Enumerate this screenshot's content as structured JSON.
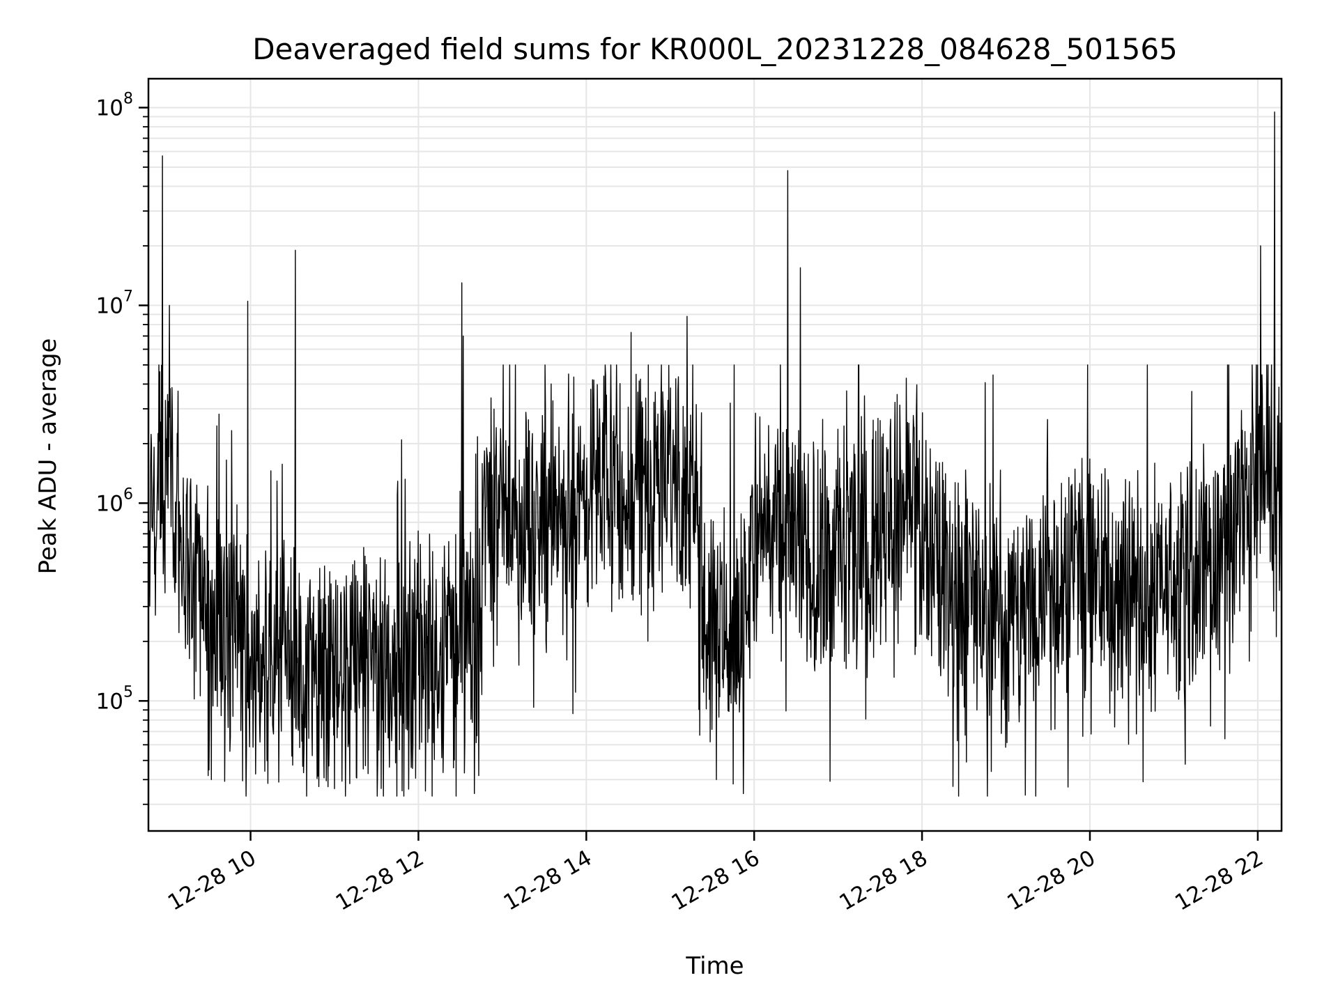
{
  "chart_data": {
    "type": "line",
    "title": "Deaveraged field sums for KR000L_20231228_084628_501565",
    "xlabel": "Time",
    "ylabel": "Peak ADU - average",
    "yscale": "log",
    "ylim": [
      22000,
      140000000
    ],
    "xlim": [
      "12-28 08:47",
      "12-28 22:17"
    ],
    "grid": true,
    "line_color": "#000000",
    "grid_color": "#e6e6e6",
    "x_ticks": [
      {
        "label": "12-28 10",
        "x": "12-28 10:00"
      },
      {
        "label": "12-28 12",
        "x": "12-28 12:00"
      },
      {
        "label": "12-28 14",
        "x": "12-28 14:00"
      },
      {
        "label": "12-28 16",
        "x": "12-28 16:00"
      },
      {
        "label": "12-28 18",
        "x": "12-28 18:00"
      },
      {
        "label": "12-28 20",
        "x": "12-28 20:00"
      },
      {
        "label": "12-28 22",
        "x": "12-28 22:00"
      }
    ],
    "y_ticks": [
      {
        "base": "10",
        "exp": "5",
        "value": 100000
      },
      {
        "base": "10",
        "exp": "6",
        "value": 1000000
      },
      {
        "base": "10",
        "exp": "7",
        "value": 10000000
      },
      {
        "base": "10",
        "exp": "8",
        "value": 100000000
      }
    ],
    "series_envelope": [
      {
        "x": "12-28 08:47",
        "y": 400000
      },
      {
        "x": "12-28 08:55",
        "y": 1500000
      },
      {
        "x": "12-28 09:02",
        "y": 1700000
      },
      {
        "x": "12-28 09:15",
        "y": 450000
      },
      {
        "x": "12-28 10:00",
        "y": 180000
      },
      {
        "x": "12-28 11:00",
        "y": 140000
      },
      {
        "x": "12-28 12:00",
        "y": 160000
      },
      {
        "x": "12-28 12:44",
        "y": 200000
      },
      {
        "x": "12-28 12:47",
        "y": 900000
      },
      {
        "x": "12-28 13:30",
        "y": 800000
      },
      {
        "x": "12-28 14:30",
        "y": 1300000
      },
      {
        "x": "12-28 15:10",
        "y": 1500000
      },
      {
        "x": "12-28 15:22",
        "y": 600000
      },
      {
        "x": "12-28 15:26",
        "y": 250000
      },
      {
        "x": "12-28 15:50",
        "y": 250000
      },
      {
        "x": "12-28 16:05",
        "y": 900000
      },
      {
        "x": "12-28 16:40",
        "y": 500000
      },
      {
        "x": "12-28 17:20",
        "y": 600000
      },
      {
        "x": "12-28 17:50",
        "y": 1100000
      },
      {
        "x": "12-28 18:20",
        "y": 400000
      },
      {
        "x": "12-28 19:00",
        "y": 250000
      },
      {
        "x": "12-28 19:40",
        "y": 450000
      },
      {
        "x": "12-28 20:30",
        "y": 350000
      },
      {
        "x": "12-28 21:30",
        "y": 500000
      },
      {
        "x": "12-28 22:00",
        "y": 1100000
      },
      {
        "x": "12-28 22:17",
        "y": 700000
      }
    ],
    "spikes": [
      {
        "x": "12-28 08:57",
        "y": 57000000
      },
      {
        "x": "12-28 09:02",
        "y": 10000000
      },
      {
        "x": "12-28 09:58",
        "y": 10500000
      },
      {
        "x": "12-28 10:32",
        "y": 19000000
      },
      {
        "x": "12-28 12:31",
        "y": 13000000
      },
      {
        "x": "12-28 12:32",
        "y": 7000000
      },
      {
        "x": "12-28 14:32",
        "y": 7300000
      },
      {
        "x": "12-28 15:12",
        "y": 8800000
      },
      {
        "x": "12-28 16:24",
        "y": 48000000
      },
      {
        "x": "12-28 16:33",
        "y": 15500000
      },
      {
        "x": "12-28 21:56",
        "y": 5000000
      },
      {
        "x": "12-28 22:02",
        "y": 20000000
      },
      {
        "x": "12-28 22:12",
        "y": 95000000
      }
    ],
    "dips": [
      {
        "x": "12-28 09:32",
        "y": 40000
      },
      {
        "x": "12-28 11:00",
        "y": 36000
      },
      {
        "x": "12-28 11:35",
        "y": 33000
      },
      {
        "x": "12-28 12:05",
        "y": 35000
      },
      {
        "x": "12-28 12:40",
        "y": 34000
      },
      {
        "x": "12-28 15:33",
        "y": 40000
      },
      {
        "x": "12-28 15:45",
        "y": 38000
      },
      {
        "x": "12-28 20:38",
        "y": 39000
      }
    ]
  }
}
